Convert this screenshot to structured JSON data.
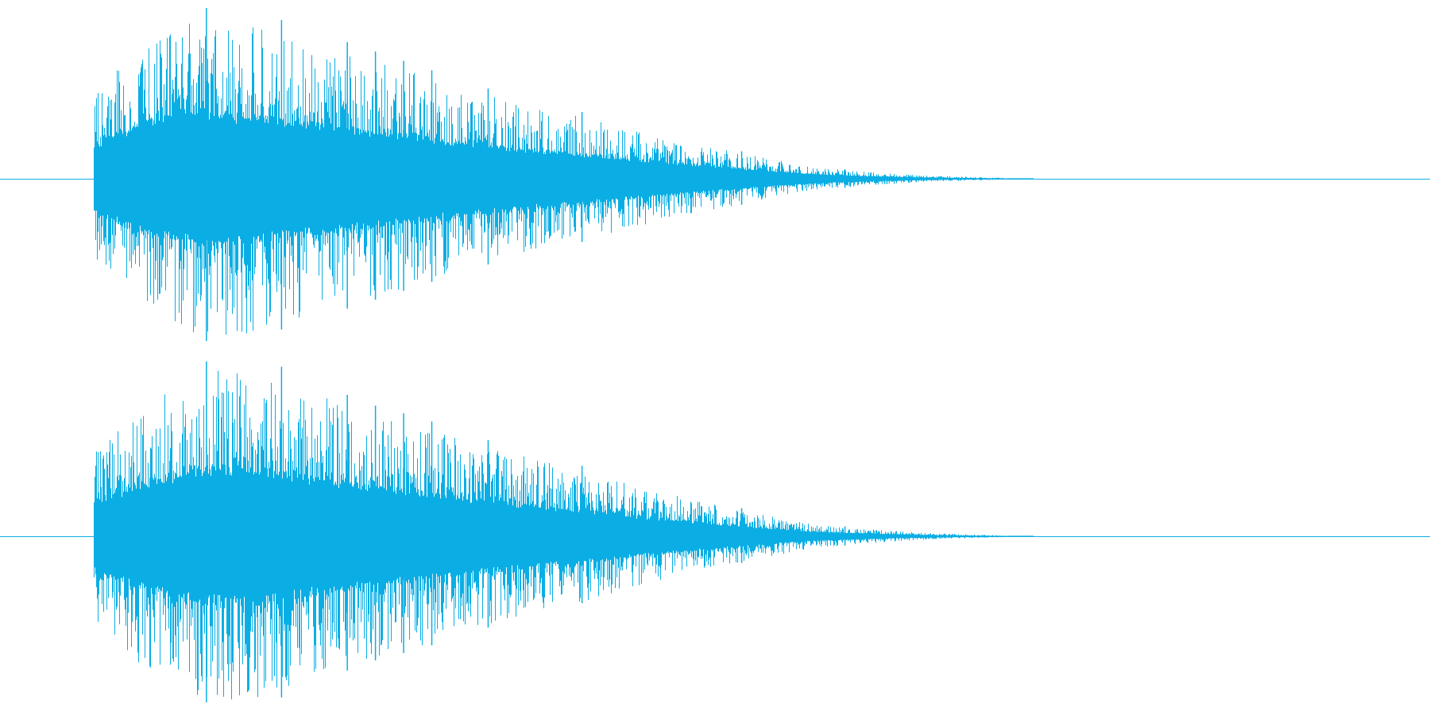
{
  "waveform": {
    "color": "#0aaee4",
    "background": "#ffffff",
    "channels": [
      {
        "name": "",
        "envelope": [
          0.48,
          0.85,
          0.95,
          0.9,
          0.8,
          0.7,
          0.6,
          0.5,
          0.42,
          0.35,
          0.27,
          0.2,
          0.13,
          0.07,
          0.04,
          0.02,
          0.01,
          0.0
        ],
        "spikes": [
          0.12,
          0.2,
          0.27,
          0.3,
          0.33,
          0.36,
          0.42,
          0.52,
          0.69,
          0.8
        ]
      },
      {
        "name": "",
        "envelope": [
          0.48,
          0.8,
          0.95,
          0.95,
          0.82,
          0.7,
          0.62,
          0.52,
          0.44,
          0.36,
          0.27,
          0.2,
          0.13,
          0.07,
          0.04,
          0.02,
          0.01,
          0.0
        ],
        "spikes": [
          0.12,
          0.2,
          0.27,
          0.3,
          0.33,
          0.36,
          0.42,
          0.52,
          0.69,
          0.8
        ]
      }
    ]
  }
}
